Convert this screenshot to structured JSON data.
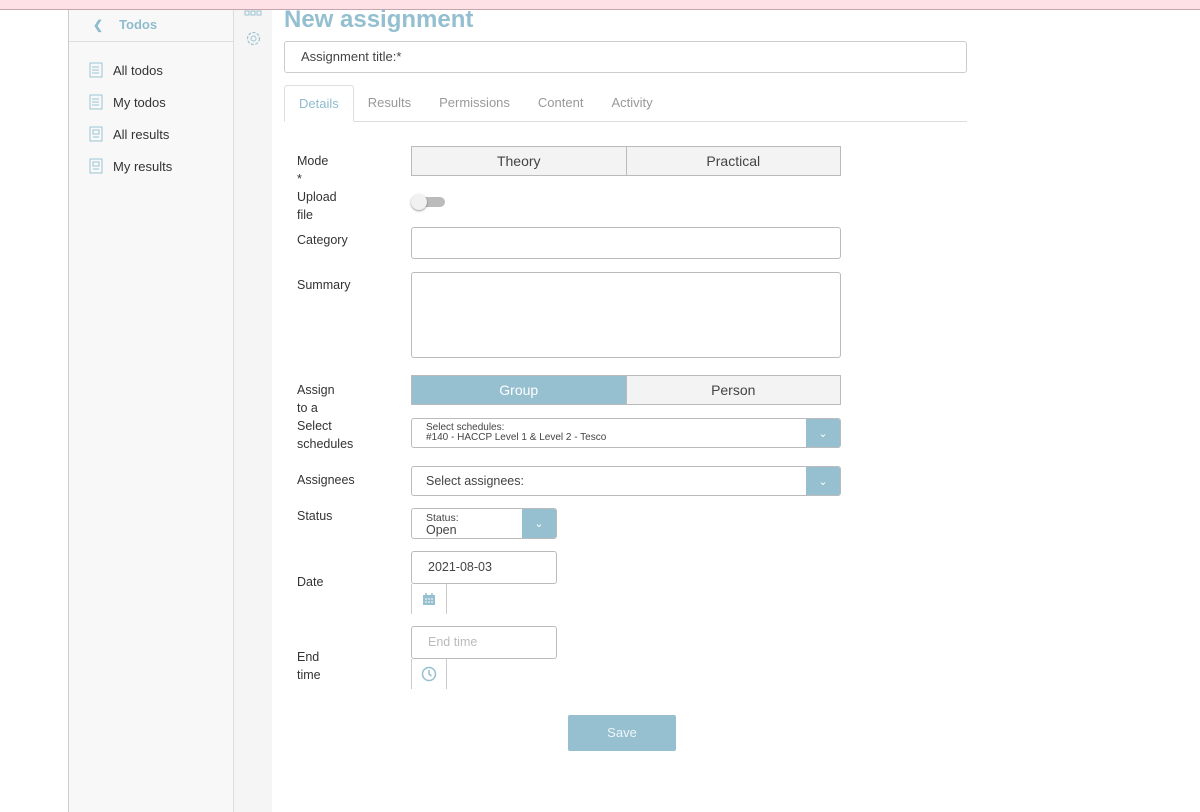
{
  "sidebar": {
    "back_label": "Todos",
    "items": [
      {
        "label": "All todos",
        "icon": "todo-list-icon"
      },
      {
        "label": "My todos",
        "icon": "todo-list-icon"
      },
      {
        "label": "All results",
        "icon": "report-icon"
      },
      {
        "label": "My results",
        "icon": "report-icon"
      }
    ]
  },
  "page": {
    "title": "New assignment",
    "title_input_placeholder": "Assignment title:*"
  },
  "tabs": [
    "Details",
    "Results",
    "Permissions",
    "Content",
    "Activity"
  ],
  "active_tab": "Details",
  "form": {
    "mode_label": "Mode *",
    "mode_options": [
      "Theory",
      "Practical"
    ],
    "upload_label": "Upload file",
    "upload_on": false,
    "category_label": "Category",
    "category_value": "",
    "summary_label": "Summary",
    "summary_value": "",
    "assign_label": "Assign to a",
    "assign_options": [
      "Group",
      "Person"
    ],
    "assign_selected": "Group",
    "schedules_label_1": "Select",
    "schedules_label_2": "schedules",
    "schedules_caption": "Select schedules:",
    "schedules_value": "#140 - HACCP Level 1 & Level 2 - Tesco",
    "assignees_label": "Assignees",
    "assignees_placeholder": "Select assignees:",
    "status_label": "Status",
    "status_caption": "Status:",
    "status_value": "Open",
    "date_label": "Date",
    "date_value": "2021-08-03",
    "end_time_label": "End time",
    "end_time_placeholder": "End time",
    "save_label": "Save"
  },
  "colors": {
    "accent": "#96bfd0",
    "topbar": "#fde1e6"
  }
}
